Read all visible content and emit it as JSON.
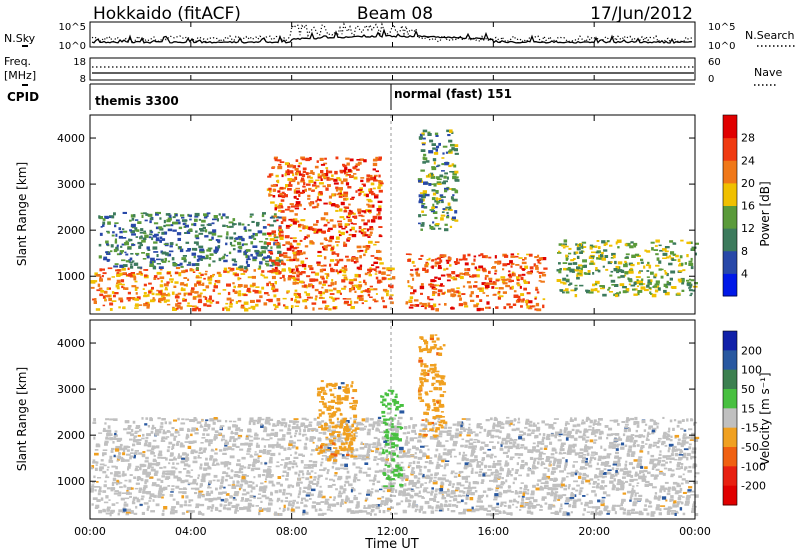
{
  "header": {
    "title": "Hokkaido (fitACF)",
    "beam": "Beam 08",
    "date": "17/Jun/2012"
  },
  "strip_labels": {
    "nsky": "N.Sky",
    "nsky_ticks": [
      "10^5",
      "10^0"
    ],
    "nsearch": "N.Search",
    "nsearch_ticks": [
      "10^5",
      "10^0"
    ],
    "freq": "Freq.",
    "freq_unit": "[MHz]",
    "freq_ticks": [
      "18",
      "8"
    ],
    "nave": "Nave",
    "nave_ticks": [
      "60",
      "0"
    ],
    "cpid": "CPID",
    "cpid_modes": [
      "themis 3300",
      "normal (fast) 151"
    ]
  },
  "axes": {
    "x_label": "Time UT",
    "x_ticks": [
      "00:00",
      "04:00",
      "08:00",
      "12:00",
      "16:00",
      "20:00",
      "00:00"
    ],
    "y_label": "Slant Range [km]",
    "y_ticks": [
      "1000",
      "2000",
      "3000",
      "4000"
    ]
  },
  "power_colorbar": {
    "label": "Power [dB]",
    "ticks": [
      "4",
      "8",
      "12",
      "16",
      "20",
      "24",
      "28"
    ],
    "colors": [
      "#0018e8",
      "#2848a8",
      "#3c7a5c",
      "#5a9a3a",
      "#f0c000",
      "#f07818",
      "#f03a10",
      "#e00000"
    ]
  },
  "velocity_colorbar": {
    "label": "Velocity [m s⁻¹]",
    "ticks": [
      "200",
      "100",
      "50",
      "15",
      "-15",
      "-50",
      "-100",
      "-200"
    ],
    "colors": [
      "#1020a8",
      "#2858a0",
      "#3c8050",
      "#48c040",
      "#c0c0c0",
      "#f0a020",
      "#f06010",
      "#e82010",
      "#e00000"
    ]
  },
  "chart_data": {
    "type": "heatmap",
    "panels": [
      "Power",
      "Velocity"
    ],
    "x_range_hours": [
      0,
      24
    ],
    "y_range_km": [
      180,
      4500
    ],
    "power_regions": [
      {
        "t": [
          0.0,
          12.0
        ],
        "r": [
          300,
          1200
        ],
        "level": 24
      },
      {
        "t": [
          0.3,
          7.5
        ],
        "r": [
          1200,
          2400
        ],
        "level": 12
      },
      {
        "t": [
          7.0,
          11.5
        ],
        "r": [
          1100,
          3600
        ],
        "level": 26
      },
      {
        "t": [
          12.5,
          18.0
        ],
        "r": [
          300,
          1500
        ],
        "level": 26
      },
      {
        "t": [
          18.5,
          24.0
        ],
        "r": [
          600,
          1800
        ],
        "level": 16
      },
      {
        "t": [
          13.0,
          14.5
        ],
        "r": [
          2000,
          4200
        ],
        "level": 14
      }
    ],
    "velocity_regions": [
      {
        "t": [
          0.0,
          24.0
        ],
        "r": [
          300,
          2400
        ],
        "v": 0
      },
      {
        "t": [
          9.0,
          10.5
        ],
        "r": [
          1500,
          3200
        ],
        "v": -40
      },
      {
        "t": [
          11.5,
          12.3
        ],
        "r": [
          900,
          3000
        ],
        "v": 40
      },
      {
        "t": [
          13.0,
          14.0
        ],
        "r": [
          2000,
          4200
        ],
        "v": -40
      }
    ]
  }
}
